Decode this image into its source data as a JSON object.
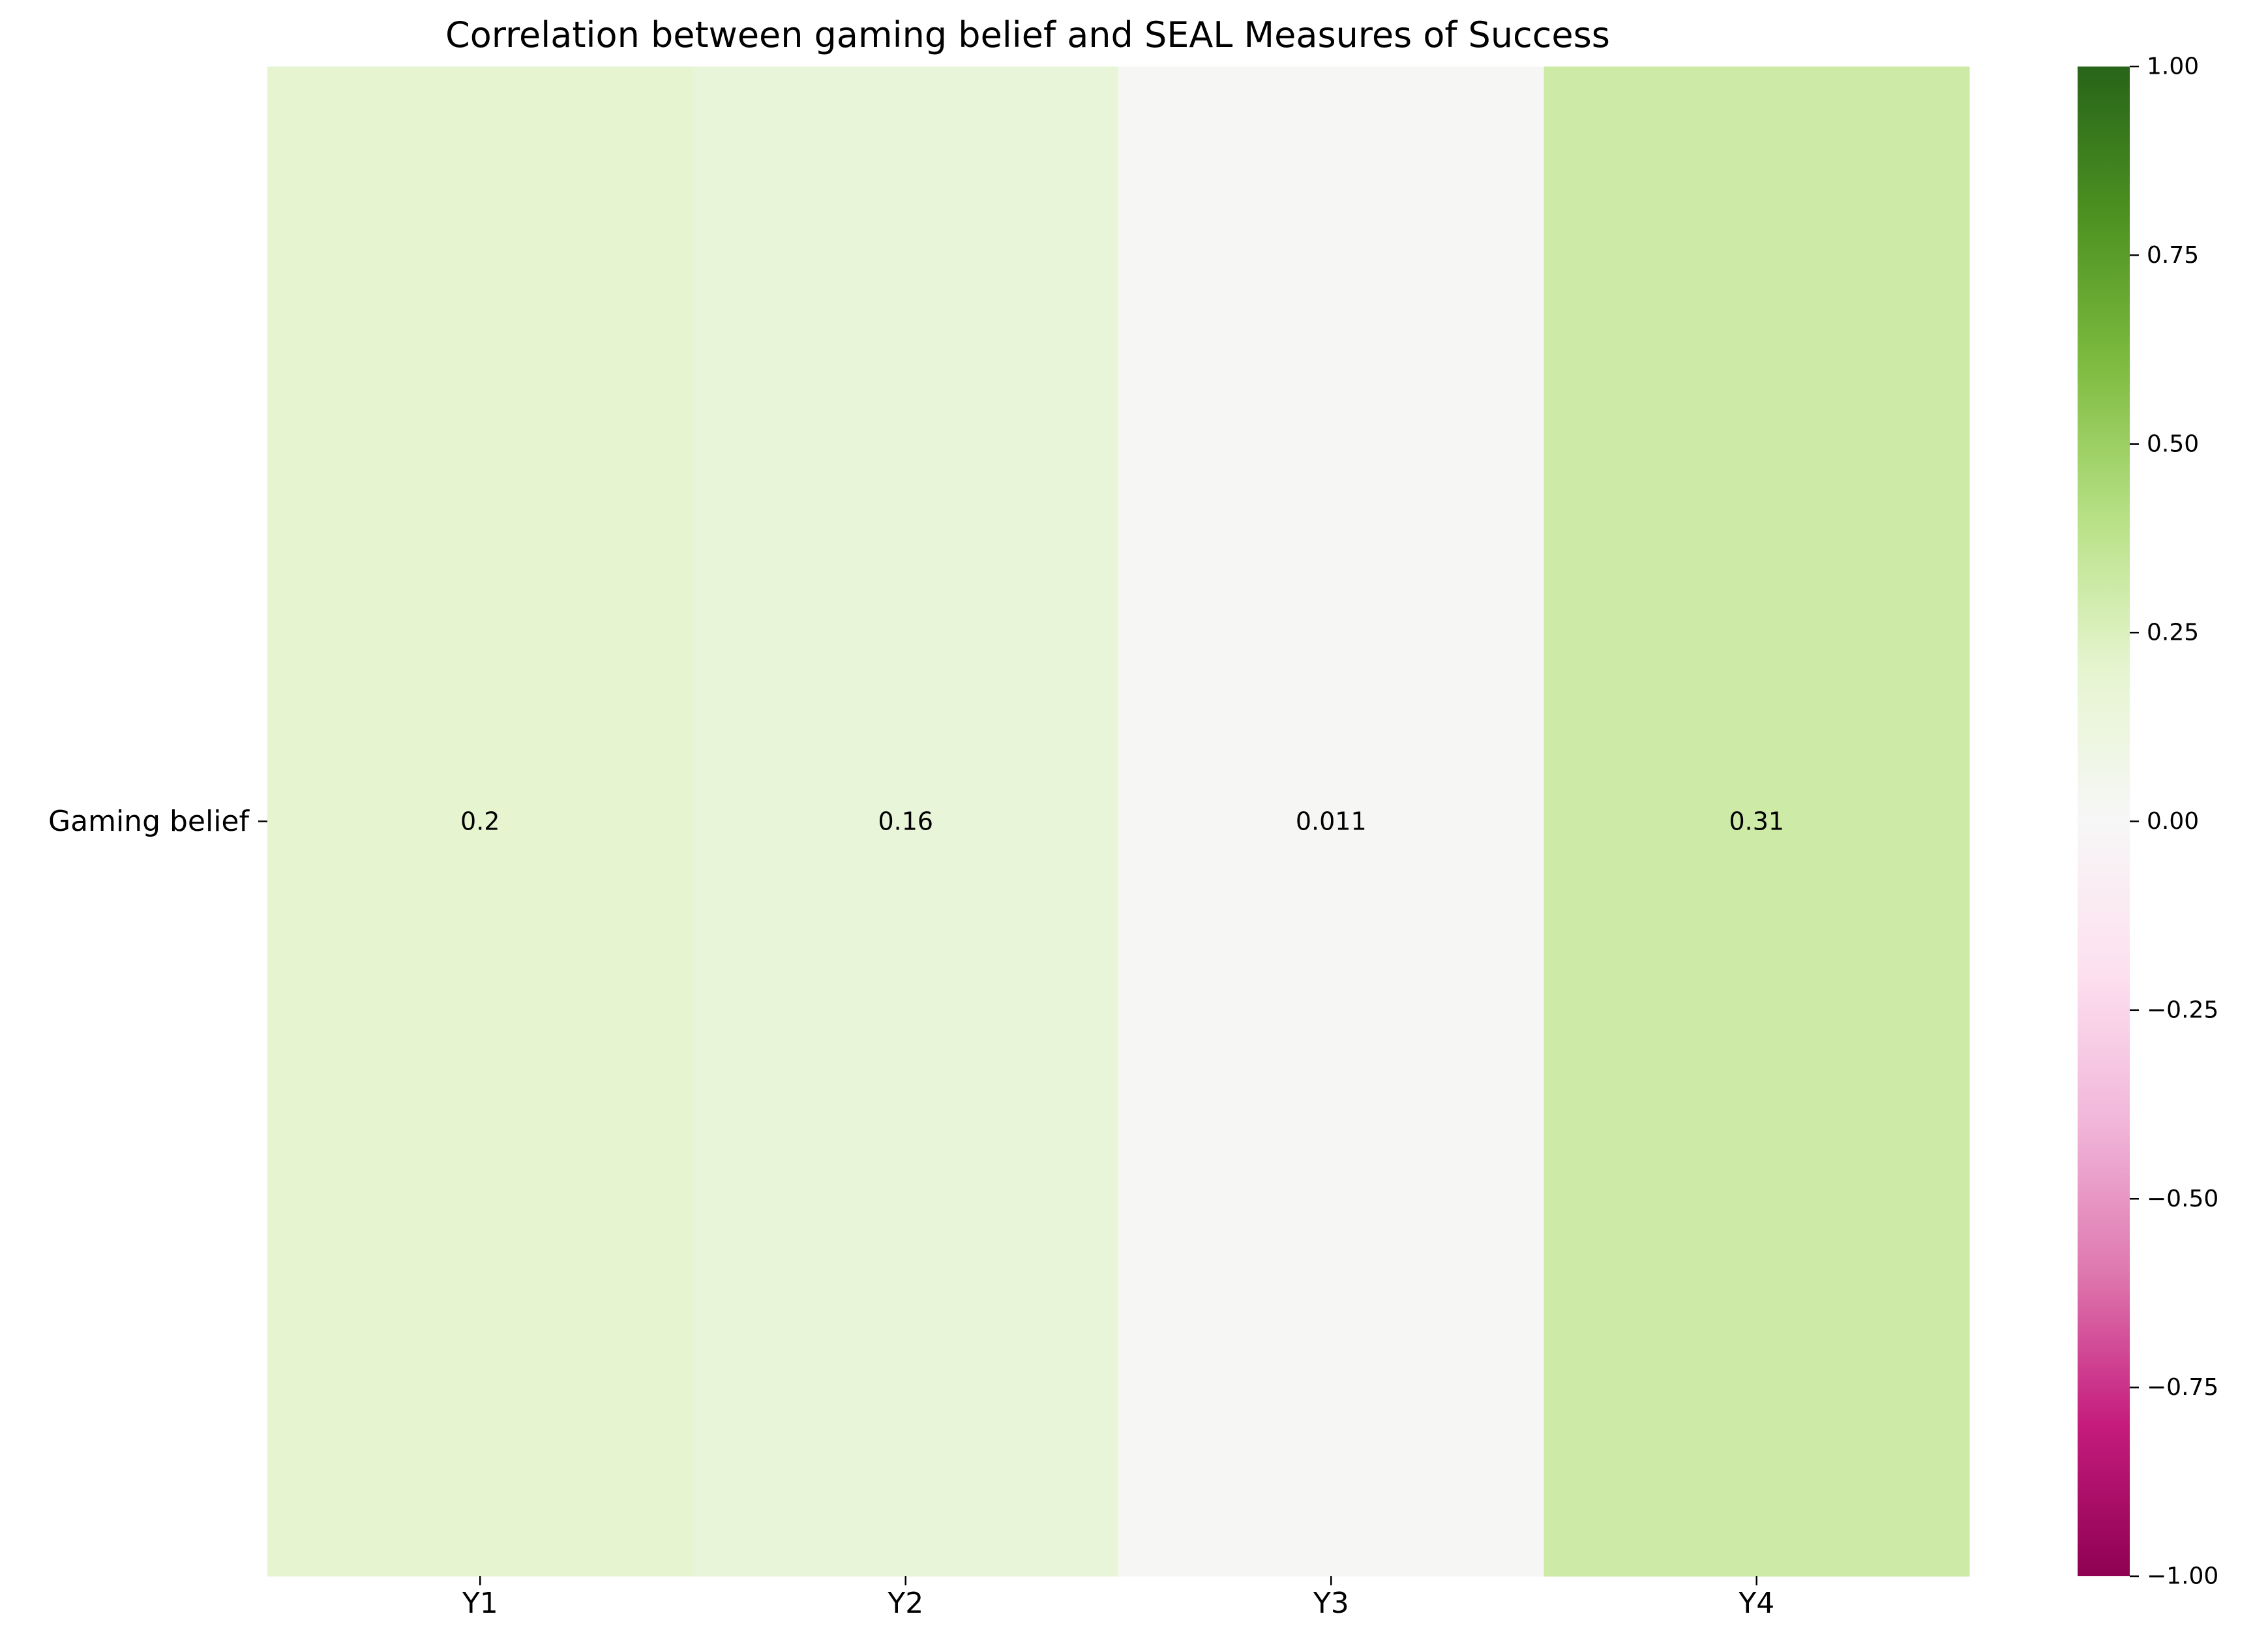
{
  "chart_data": {
    "type": "heatmap",
    "title": "Correlation between gaming belief and SEAL Measures of Success",
    "xlabel": "",
    "ylabel": "",
    "x_categories": [
      "Y1",
      "Y2",
      "Y3",
      "Y4"
    ],
    "y_categories": [
      "Gaming belief"
    ],
    "values": [
      [
        0.2,
        0.16,
        0.011,
        0.31
      ]
    ],
    "cell_labels": [
      [
        "0.2",
        "0.16",
        "0.011",
        "0.31"
      ]
    ],
    "colormap": "PiYG",
    "vmin": -1.0,
    "vmax": 1.0,
    "colorbar_ticks": [
      1.0,
      0.75,
      0.5,
      0.25,
      0.0,
      -0.25,
      -0.5,
      -0.75,
      -1.0
    ],
    "colorbar_tick_labels": [
      "1.00",
      "0.75",
      "0.50",
      "0.25",
      "0.00",
      "−0.25",
      "−0.50",
      "−0.75",
      "−1.00"
    ],
    "grid": false,
    "colorbar_position": "right"
  }
}
